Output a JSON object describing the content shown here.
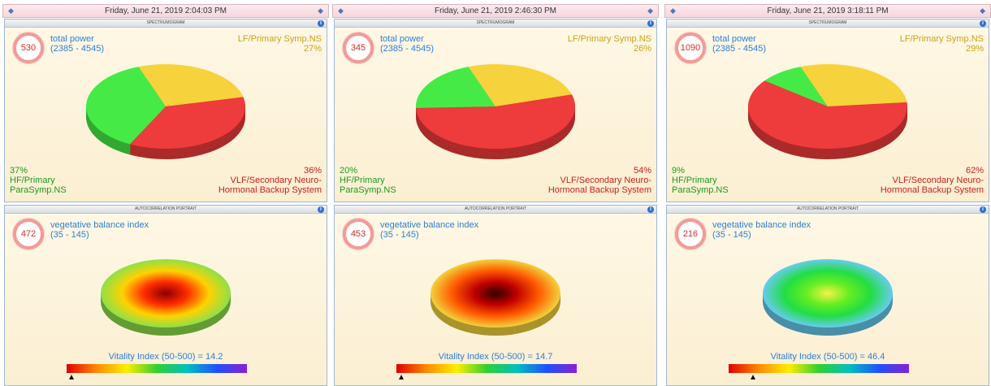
{
  "panels": [
    {
      "date": "Friday, June 21, 2019 2:04:03 PM",
      "spectrum": {
        "title": "SPECTRUMOGRAM",
        "score": "530",
        "label": "total power",
        "range": "(2385 - 4545)",
        "slices": [
          {
            "name": "LF/Primary Symp.NS",
            "value": 27,
            "value_label": "27%",
            "color": "#f6d23c"
          },
          {
            "name": "VLF/Secondary Neuro-\nHormonal Backup System",
            "value": 36,
            "value_label": "36%",
            "color": "#ee3b3b"
          },
          {
            "name": "HF/Primary\nParaSymp.NS",
            "value": 37,
            "value_label": "37%",
            "color": "#46ea47"
          }
        ]
      },
      "autocorr": {
        "title": "AUTOCORRELATION PORTRAIT",
        "score": "472",
        "label": "vegetative balance index",
        "range": "(35 - 145)",
        "vitality": "Vitality Index (50-500) = 14.2",
        "colors": [
          "#8a0000",
          "#ff2a00",
          "#ffd200",
          "#8ee04a"
        ]
      }
    },
    {
      "date": "Friday, June 21, 2019 2:46:30 PM",
      "spectrum": {
        "title": "SPECTRUMOGRAM",
        "score": "345",
        "label": "total power",
        "range": "(2385 - 4545)",
        "slices": [
          {
            "name": "LF/Primary Symp.NS",
            "value": 26,
            "value_label": "26%",
            "color": "#f6d23c"
          },
          {
            "name": "VLF/Secondary Neuro-\nHormonal Backup System",
            "value": 54,
            "value_label": "54%",
            "color": "#ee3b3b"
          },
          {
            "name": "HF/Primary\nParaSymp.NS",
            "value": 20,
            "value_label": "20%",
            "color": "#46ea47"
          }
        ]
      },
      "autocorr": {
        "title": "AUTOCORRELATION PORTRAIT",
        "score": "453",
        "label": "vegetative balance index",
        "range": "(35 - 145)",
        "vitality": "Vitality Index (50-500) = 14.7",
        "colors": [
          "#300000",
          "#c00000",
          "#ff5a00",
          "#f2d23c"
        ]
      }
    },
    {
      "date": "Friday, June 21, 2019 3:18:11 PM",
      "spectrum": {
        "title": "SPECTRUMOGRAM",
        "score": "1090",
        "label": "total power",
        "range": "(2385 - 4545)",
        "slices": [
          {
            "name": "LF/Primary Symp.NS",
            "value": 29,
            "value_label": "29%",
            "color": "#f6d23c"
          },
          {
            "name": "VLF/Secondary Neuro-\nHormonal Backup System",
            "value": 62,
            "value_label": "62%",
            "color": "#ee3b3b"
          },
          {
            "name": "HF/Primary\nParaSymp.NS",
            "value": 9,
            "value_label": "9%",
            "color": "#46ea47"
          }
        ]
      },
      "autocorr": {
        "title": "AUTOCORRELATION PORTRAIT",
        "score": "216",
        "label": "vegetative balance index",
        "range": "(35 - 145)",
        "vitality": "Vitality Index (50-500) = 46.4",
        "colors": [
          "#f4f24a",
          "#66ee22",
          "#22dd44",
          "#66ccee"
        ]
      }
    }
  ]
}
